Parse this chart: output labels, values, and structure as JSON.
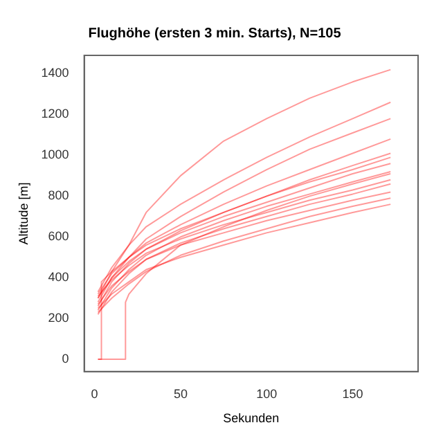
{
  "chart_data": {
    "type": "line",
    "title": "Flughöhe (ersten 3 min. Starts), N=105",
    "xlabel": "Sekunden",
    "ylabel": "Altitude [m]",
    "x": [
      2,
      10,
      20,
      30,
      50,
      75,
      100,
      125,
      150,
      172
    ],
    "xlim": [
      -6,
      188
    ],
    "xticks": [
      0,
      50,
      100,
      150
    ],
    "ylim": [
      -60,
      1490
    ],
    "yticks": [
      0,
      200,
      400,
      600,
      800,
      1000,
      1200,
      1400
    ],
    "grid": false,
    "legend": false,
    "marker": "none",
    "line_style": "solid",
    "series": [
      {
        "color": "#ff0000",
        "values": [
          300,
          430,
          560,
          720,
          900,
          1070,
          1180,
          1280,
          1360,
          1420
        ]
      },
      {
        "color": "#ff0000",
        "values": [
          330,
          450,
          560,
          650,
          760,
          880,
          990,
          1090,
          1180,
          1260
        ]
      },
      {
        "color": "#ff0000",
        "values": [
          280,
          400,
          500,
          590,
          700,
          820,
          930,
          1030,
          1110,
          1180
        ]
      },
      {
        "color": "#ff0000",
        "values": [
          320,
          420,
          500,
          570,
          660,
          760,
          850,
          930,
          1010,
          1080
        ]
      },
      {
        "color": "#ff0000",
        "values": [
          260,
          380,
          470,
          540,
          630,
          720,
          800,
          880,
          950,
          1010
        ]
      },
      {
        "color": "#ff0000",
        "values": [
          300,
          400,
          480,
          540,
          620,
          700,
          770,
          840,
          910,
          960
        ]
      },
      {
        "color": "#ff0000",
        "values": [
          240,
          350,
          440,
          510,
          600,
          680,
          750,
          810,
          870,
          920
        ]
      },
      {
        "color": "#ff0000",
        "values": [
          310,
          390,
          460,
          520,
          590,
          660,
          720,
          780,
          830,
          880
        ]
      },
      {
        "color": "#ff0000",
        "values": [
          220,
          330,
          420,
          490,
          570,
          640,
          700,
          760,
          810,
          860
        ]
      },
      {
        "color": "#ff0000",
        "values": [
          270,
          360,
          430,
          490,
          560,
          620,
          680,
          730,
          780,
          820
        ]
      },
      {
        "color": "#ff0000",
        "values": [
          230,
          300,
          370,
          430,
          510,
          580,
          640,
          700,
          750,
          790
        ]
      },
      {
        "color": "#ff0000",
        "values": [
          250,
          320,
          380,
          440,
          500,
          560,
          620,
          670,
          720,
          760
        ]
      },
      {
        "color": "#ff0000",
        "x": [
          2,
          4,
          4,
          10,
          20,
          30,
          50,
          75,
          100,
          125,
          150,
          172
        ],
        "values": [
          0,
          0,
          380,
          430,
          500,
          560,
          640,
          720,
          800,
          870,
          930,
          990
        ]
      },
      {
        "color": "#ff0000",
        "x": [
          2,
          18,
          18,
          20,
          30,
          50,
          75,
          100,
          125,
          150,
          172
        ],
        "values": [
          0,
          0,
          280,
          320,
          420,
          560,
          650,
          730,
          800,
          860,
          910
        ]
      }
    ]
  }
}
